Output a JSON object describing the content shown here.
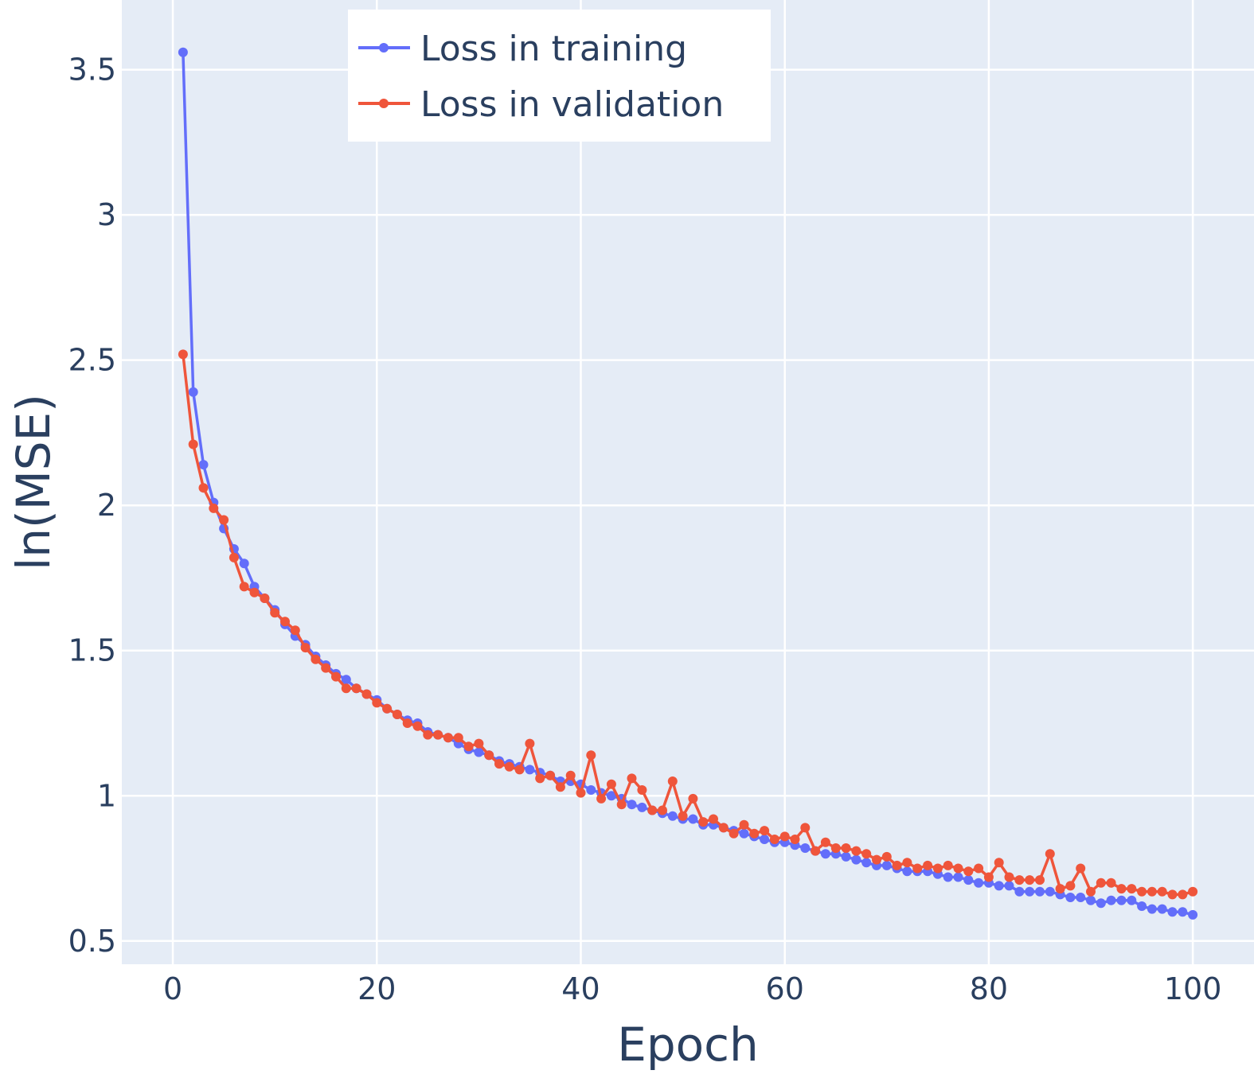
{
  "chart_data": {
    "type": "line",
    "title": "",
    "xlabel": "Epoch",
    "ylabel": "ln(MSE)",
    "xlim": [
      -5,
      106
    ],
    "ylim": [
      0.42,
      3.74
    ],
    "x_ticks": [
      {
        "value": 0,
        "label": "0"
      },
      {
        "value": 20,
        "label": "20"
      },
      {
        "value": 40,
        "label": "40"
      },
      {
        "value": 60,
        "label": "60"
      },
      {
        "value": 80,
        "label": "80"
      },
      {
        "value": 100,
        "label": "100"
      }
    ],
    "y_ticks": [
      {
        "value": 0.5,
        "label": "0.5"
      },
      {
        "value": 1,
        "label": "1"
      },
      {
        "value": 1.5,
        "label": "1.5"
      },
      {
        "value": 2,
        "label": "2"
      },
      {
        "value": 2.5,
        "label": "2.5"
      },
      {
        "value": 3,
        "label": "3"
      },
      {
        "value": 3.5,
        "label": "3.5"
      }
    ],
    "grid": true,
    "legend_position": "top-center",
    "background_color": "#e5ecf6",
    "grid_color": "#ffffff",
    "text_color": "#2a3f5f",
    "x": [
      1,
      2,
      3,
      4,
      5,
      6,
      7,
      8,
      9,
      10,
      11,
      12,
      13,
      14,
      15,
      16,
      17,
      18,
      19,
      20,
      21,
      22,
      23,
      24,
      25,
      26,
      27,
      28,
      29,
      30,
      31,
      32,
      33,
      34,
      35,
      36,
      37,
      38,
      39,
      40,
      41,
      42,
      43,
      44,
      45,
      46,
      47,
      48,
      49,
      50,
      51,
      52,
      53,
      54,
      55,
      56,
      57,
      58,
      59,
      60,
      61,
      62,
      63,
      64,
      65,
      66,
      67,
      68,
      69,
      70,
      71,
      72,
      73,
      74,
      75,
      76,
      77,
      78,
      79,
      80,
      81,
      82,
      83,
      84,
      85,
      86,
      87,
      88,
      89,
      90,
      91,
      92,
      93,
      94,
      95,
      96,
      97,
      98,
      99,
      100
    ],
    "series": [
      {
        "name": "Loss in training",
        "color": "#636efa",
        "values": [
          3.56,
          2.39,
          2.14,
          2.01,
          1.92,
          1.85,
          1.8,
          1.72,
          1.68,
          1.64,
          1.59,
          1.55,
          1.52,
          1.48,
          1.45,
          1.42,
          1.4,
          1.37,
          1.35,
          1.33,
          1.3,
          1.28,
          1.26,
          1.25,
          1.22,
          1.21,
          1.2,
          1.18,
          1.16,
          1.15,
          1.14,
          1.12,
          1.11,
          1.1,
          1.09,
          1.08,
          1.07,
          1.05,
          1.05,
          1.04,
          1.02,
          1.01,
          1.0,
          0.99,
          0.97,
          0.96,
          0.95,
          0.94,
          0.93,
          0.92,
          0.92,
          0.9,
          0.9,
          0.89,
          0.88,
          0.87,
          0.86,
          0.85,
          0.84,
          0.84,
          0.83,
          0.82,
          0.81,
          0.8,
          0.8,
          0.79,
          0.78,
          0.77,
          0.76,
          0.76,
          0.75,
          0.74,
          0.74,
          0.74,
          0.73,
          0.72,
          0.72,
          0.71,
          0.7,
          0.7,
          0.69,
          0.69,
          0.67,
          0.67,
          0.67,
          0.67,
          0.66,
          0.65,
          0.65,
          0.64,
          0.63,
          0.64,
          0.64,
          0.64,
          0.62,
          0.61,
          0.61,
          0.6,
          0.6,
          0.59
        ]
      },
      {
        "name": "Loss in validation",
        "color": "#ef553b",
        "values": [
          2.52,
          2.21,
          2.06,
          1.99,
          1.95,
          1.82,
          1.72,
          1.7,
          1.68,
          1.63,
          1.6,
          1.57,
          1.51,
          1.47,
          1.44,
          1.41,
          1.37,
          1.37,
          1.35,
          1.32,
          1.3,
          1.28,
          1.25,
          1.24,
          1.21,
          1.21,
          1.2,
          1.2,
          1.17,
          1.18,
          1.14,
          1.11,
          1.1,
          1.09,
          1.18,
          1.06,
          1.07,
          1.03,
          1.07,
          1.01,
          1.14,
          0.99,
          1.04,
          0.97,
          1.06,
          1.02,
          0.95,
          0.95,
          1.05,
          0.93,
          0.99,
          0.91,
          0.92,
          0.89,
          0.87,
          0.9,
          0.87,
          0.88,
          0.85,
          0.86,
          0.85,
          0.89,
          0.81,
          0.84,
          0.82,
          0.82,
          0.81,
          0.8,
          0.78,
          0.79,
          0.76,
          0.77,
          0.75,
          0.76,
          0.75,
          0.76,
          0.75,
          0.74,
          0.75,
          0.72,
          0.77,
          0.72,
          0.71,
          0.71,
          0.71,
          0.8,
          0.68,
          0.69,
          0.75,
          0.67,
          0.7,
          0.7,
          0.68,
          0.68,
          0.67,
          0.67,
          0.67,
          0.66,
          0.66,
          0.67
        ]
      }
    ]
  }
}
